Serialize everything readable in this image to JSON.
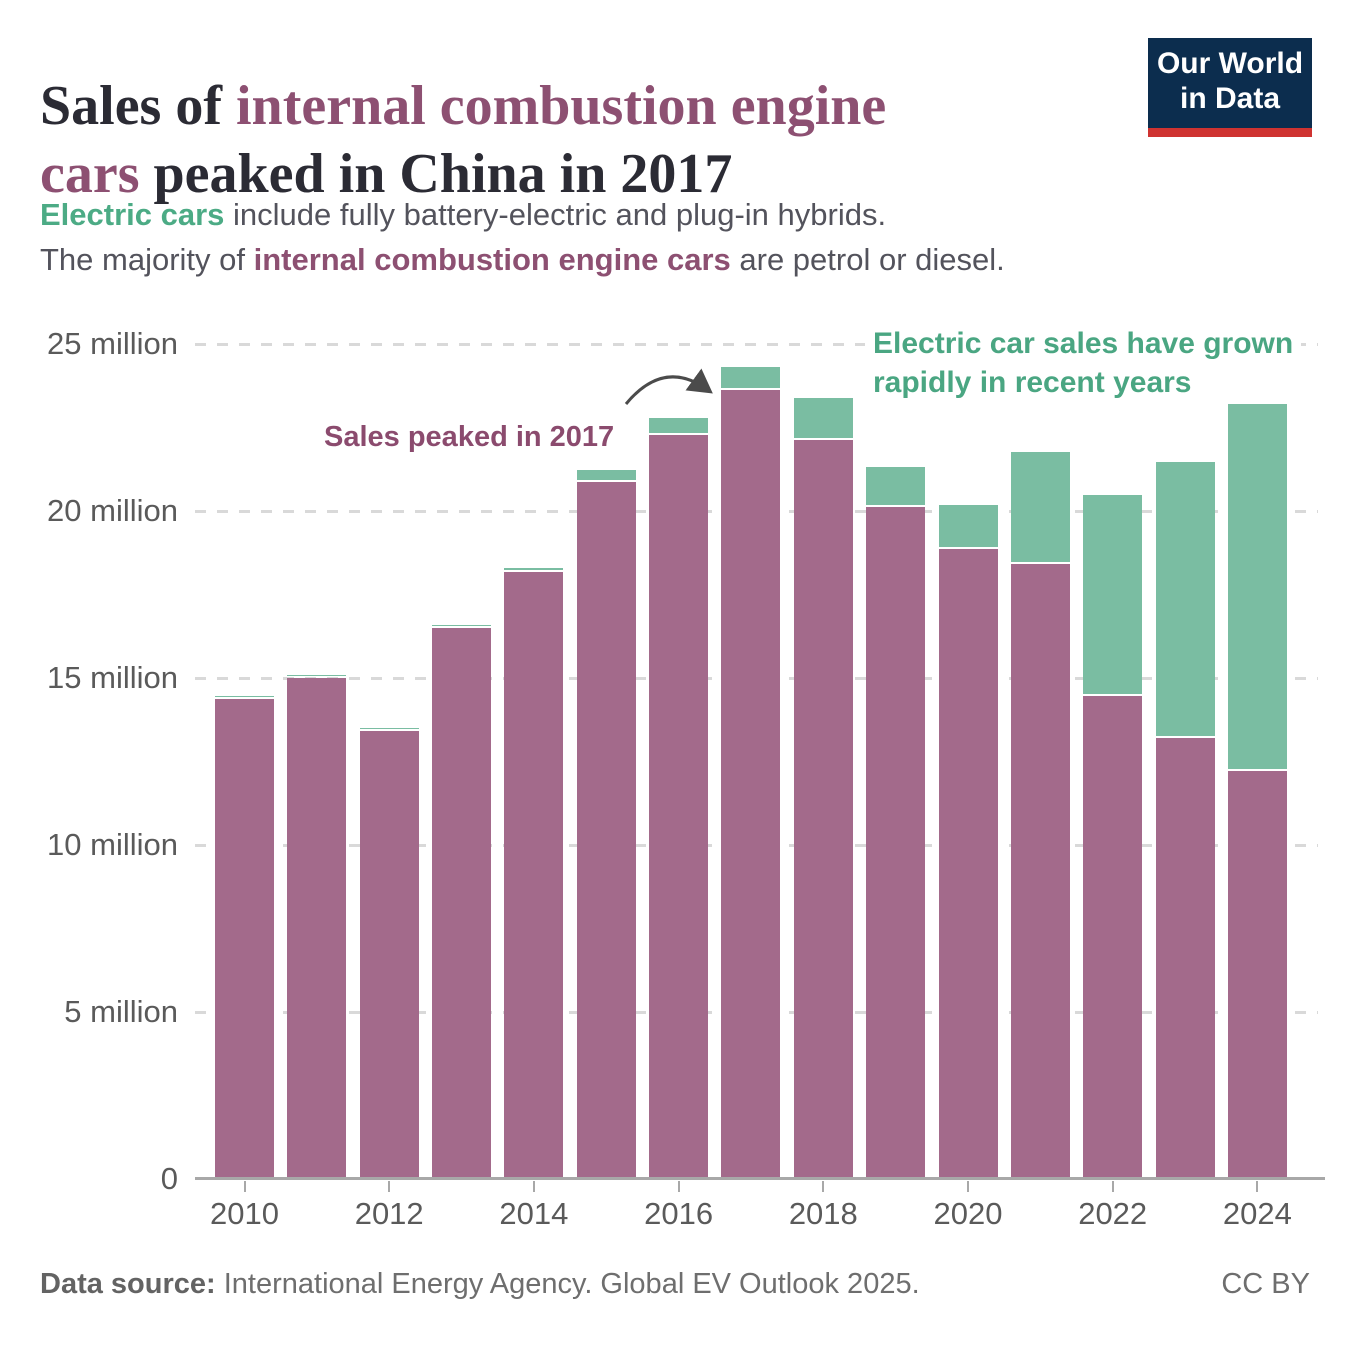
{
  "header": {
    "title": {
      "prefix": "Sales of ",
      "highlight_line1": "internal combustion engine",
      "highlight_line2": "cars",
      "suffix": " peaked in China in 2017"
    },
    "subtitle": {
      "line1_highlight": "Electric cars",
      "line1_rest": " include fully battery-electric and plug-in hybrids.",
      "line2_prefix": "The majority of ",
      "line2_highlight": "internal combustion engine cars",
      "line2_suffix": " are petrol or diesel."
    },
    "logo": {
      "line1": "Our World",
      "line2": "in Data"
    }
  },
  "annotations": {
    "peak": "Sales peaked in 2017",
    "ev_line1": "Electric car sales have grown",
    "ev_line2": "rapidly in recent years"
  },
  "footer": {
    "source_label": "Data source:",
    "source_text": " International Energy Agency. Global EV Outlook 2025.",
    "license": "CC BY"
  },
  "colors": {
    "title_dark": "#2b2b34",
    "title_mauve": "#8d5072",
    "subtitle_green": "#4cab85",
    "bar_ice": "#a36a8b",
    "bar_ev": "#7abda2",
    "annotation_green": "#4aa682",
    "annotation_mauve": "#8b4b6e",
    "logo_navy": "#0c2d4e",
    "logo_red": "#cf3331",
    "axis_gray": "#5a5a5a"
  },
  "chart_data": {
    "type": "bar",
    "stacked": true,
    "title": "Sales of internal combustion engine cars peaked in China in 2017",
    "unit": "million cars per year",
    "grid": "horizontal dashed",
    "legend_position": "none",
    "categories": [
      2010,
      2011,
      2012,
      2013,
      2014,
      2015,
      2016,
      2017,
      2018,
      2019,
      2020,
      2021,
      2022,
      2023,
      2024
    ],
    "series": [
      {
        "name": "Internal combustion engine cars",
        "color": "#a36a8b",
        "values": [
          14.35,
          15.0,
          13.4,
          16.5,
          18.15,
          20.85,
          22.25,
          23.6,
          22.1,
          20.1,
          18.85,
          18.4,
          14.45,
          13.2,
          12.2
        ]
      },
      {
        "name": "Electric cars",
        "color": "#7abda2",
        "values": [
          0.01,
          0.01,
          0.02,
          0.03,
          0.08,
          0.3,
          0.45,
          0.65,
          1.2,
          1.15,
          1.25,
          3.3,
          5.95,
          8.2,
          11.4
        ]
      }
    ],
    "ylim": [
      0,
      25
    ],
    "y_ticks": [
      {
        "value": 0,
        "label": "0"
      },
      {
        "value": 5,
        "label": "5 million"
      },
      {
        "value": 10,
        "label": "10 million"
      },
      {
        "value": 15,
        "label": "15 million"
      },
      {
        "value": 20,
        "label": "20 million"
      },
      {
        "value": 25,
        "label": "25 million"
      }
    ],
    "x_tick_labels": [
      2010,
      2012,
      2014,
      2016,
      2018,
      2020,
      2022,
      2024
    ]
  }
}
